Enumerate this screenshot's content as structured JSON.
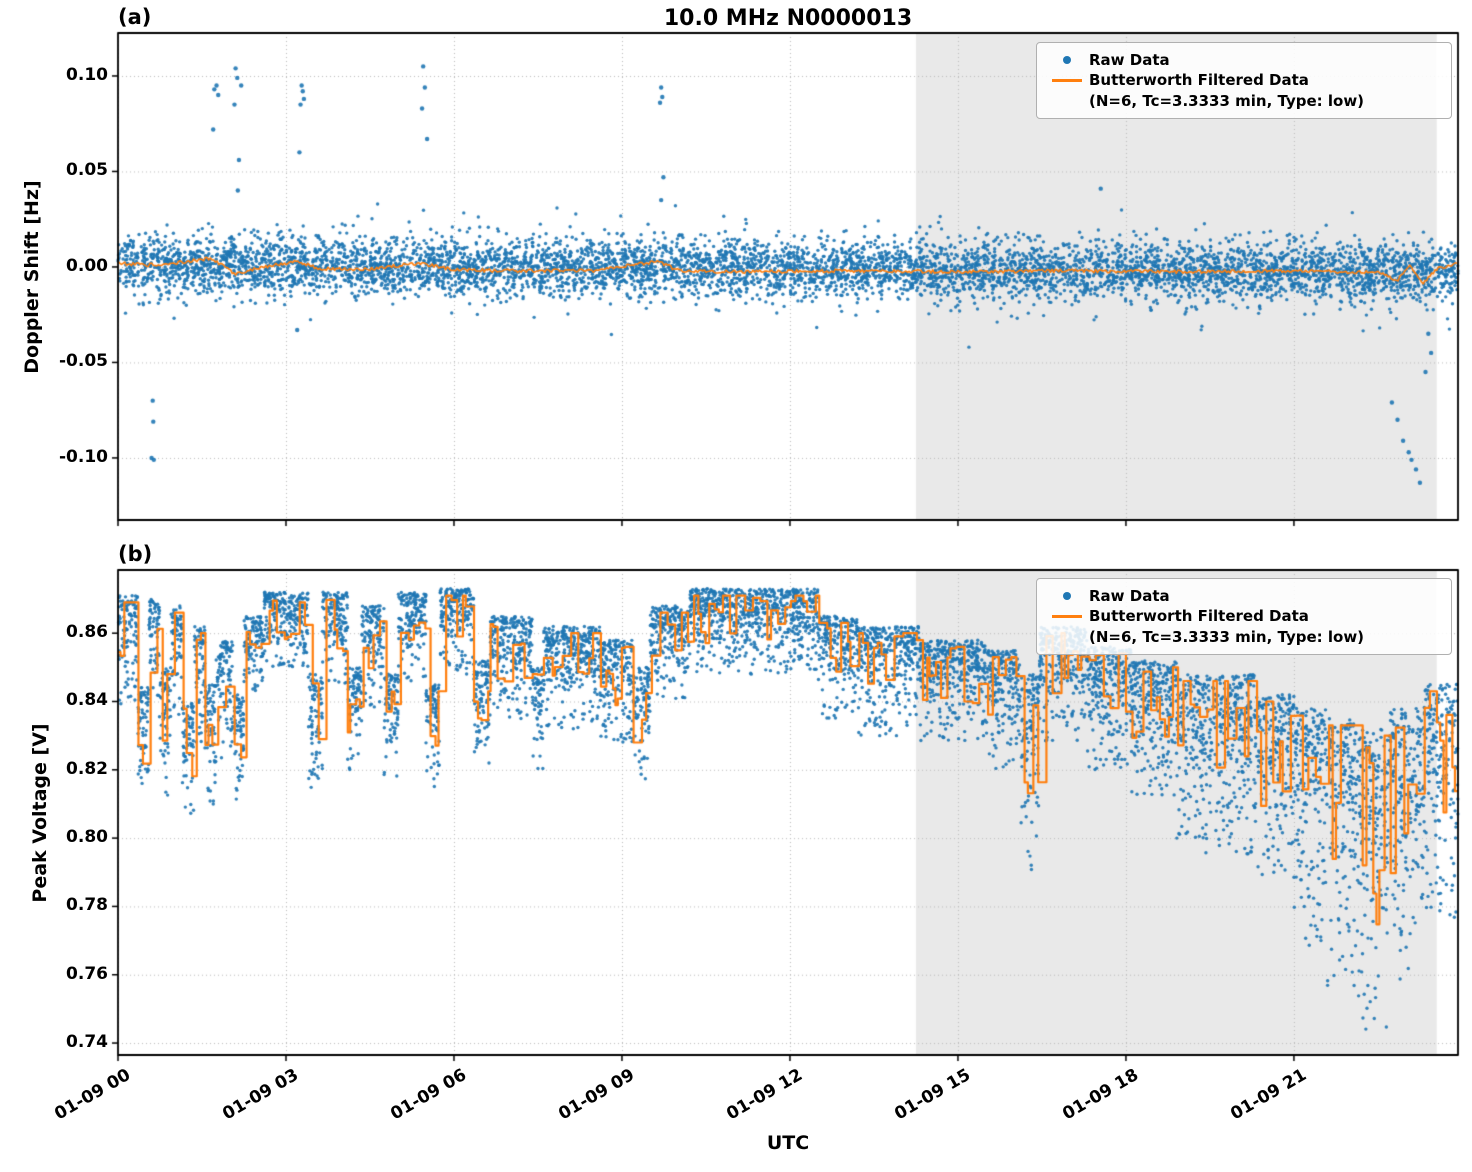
{
  "figure": {
    "title": "10.0 MHz N0000013",
    "xlabel": "UTC",
    "colors": {
      "raw": "#1f77b4",
      "filtered": "#ff7f0e",
      "shade": "#e9e9e9",
      "grid": "#bbbbbb",
      "axis": "#000000"
    },
    "legend": {
      "raw_label": "Raw Data",
      "filtered_label": "Butterworth Filtered Data",
      "filtered_sublabel": "(N=6, Tc=3.3333 min, Type: low)"
    }
  },
  "chart_data": [
    {
      "type": "scatter",
      "panel_label": "(a)",
      "title": "10.0 MHz N0000013",
      "ylabel": "Doppler Shift [Hz]",
      "ylim": [
        -0.1325,
        0.1225
      ],
      "yticks": [
        0.1,
        0.05,
        0.0,
        -0.05,
        -0.1
      ],
      "ytick_labels": [
        "0.10",
        "0.05",
        "0.00",
        "-0.05",
        "-0.10"
      ],
      "xlim_hours": [
        0,
        23.93
      ],
      "xticks_hours": [
        0,
        3,
        6,
        9,
        12,
        15,
        18,
        21
      ],
      "xtick_labels": [],
      "grid": true,
      "legend_position": "upper right",
      "shaded_region_hours": [
        14.25,
        23.55
      ],
      "series": [
        {
          "name": "Raw Data",
          "kind": "scatter-band",
          "n_points": 6500,
          "mean_start": 0.001,
          "mean_end": -0.003,
          "sigma": 0.0075,
          "wide_sigma": 0.013,
          "wide_fraction": 0.07,
          "clip": [
            -0.042,
            0.033
          ],
          "outliers": [
            [
              0.6,
              -0.1
            ],
            [
              0.62,
              -0.07
            ],
            [
              0.63,
              -0.081
            ],
            [
              0.64,
              -0.101
            ],
            [
              1.7,
              0.072
            ],
            [
              1.72,
              0.093
            ],
            [
              1.76,
              0.095
            ],
            [
              1.79,
              0.09
            ],
            [
              2.08,
              0.085
            ],
            [
              2.1,
              0.104
            ],
            [
              2.13,
              0.099
            ],
            [
              2.14,
              0.04
            ],
            [
              2.16,
              0.056
            ],
            [
              2.2,
              0.095
            ],
            [
              3.2,
              -0.033
            ],
            [
              3.24,
              0.06
            ],
            [
              3.26,
              0.085
            ],
            [
              3.28,
              0.095
            ],
            [
              3.3,
              0.092
            ],
            [
              3.32,
              0.088
            ],
            [
              5.43,
              0.083
            ],
            [
              5.45,
              0.105
            ],
            [
              5.48,
              0.094
            ],
            [
              5.52,
              0.067
            ],
            [
              9.68,
              0.086
            ],
            [
              9.7,
              0.094
            ],
            [
              9.72,
              0.089
            ],
            [
              9.74,
              0.047
            ],
            [
              9.7,
              0.035
            ],
            [
              17.55,
              0.041
            ],
            [
              22.75,
              -0.071
            ],
            [
              22.85,
              -0.08
            ],
            [
              22.95,
              -0.091
            ],
            [
              23.05,
              -0.097
            ],
            [
              23.1,
              -0.101
            ],
            [
              23.18,
              -0.106
            ],
            [
              23.25,
              -0.113
            ],
            [
              23.35,
              -0.055
            ],
            [
              23.4,
              -0.035
            ],
            [
              23.45,
              -0.045
            ]
          ]
        },
        {
          "name": "Butterworth Filtered Data",
          "kind": "line-control",
          "jitter": 0.0009,
          "points": [
            [
              0,
              0.002
            ],
            [
              0.5,
              0.001
            ],
            [
              1.0,
              0.002
            ],
            [
              1.65,
              0.0045
            ],
            [
              1.9,
              0.0
            ],
            [
              2.1,
              -0.004
            ],
            [
              2.6,
              0.0
            ],
            [
              3.2,
              0.003
            ],
            [
              3.6,
              -0.001
            ],
            [
              4.5,
              -0.001
            ],
            [
              5.4,
              0.002
            ],
            [
              6.0,
              -0.0015
            ],
            [
              7.0,
              -0.002
            ],
            [
              8.5,
              -0.002
            ],
            [
              9.65,
              0.003
            ],
            [
              10.0,
              -0.002
            ],
            [
              11,
              -0.0025
            ],
            [
              13,
              -0.002
            ],
            [
              15,
              -0.0025
            ],
            [
              17,
              -0.002
            ],
            [
              19,
              -0.0025
            ],
            [
              21,
              -0.002
            ],
            [
              22.5,
              -0.003
            ],
            [
              22.85,
              -0.007
            ],
            [
              23.05,
              0.001
            ],
            [
              23.3,
              -0.009
            ],
            [
              23.55,
              -0.001
            ],
            [
              23.93,
              0.002
            ]
          ]
        }
      ]
    },
    {
      "type": "scatter",
      "panel_label": "(b)",
      "ylabel": "Peak Voltage [V]",
      "xlabel": "UTC",
      "ylim": [
        0.7365,
        0.8785
      ],
      "yticks": [
        0.86,
        0.84,
        0.82,
        0.8,
        0.78,
        0.76,
        0.74
      ],
      "ytick_labels": [
        "0.86",
        "0.84",
        "0.82",
        "0.80",
        "0.78",
        "0.76",
        "0.74"
      ],
      "xlim_hours": [
        0,
        23.93
      ],
      "xticks_hours": [
        0,
        3,
        6,
        9,
        12,
        15,
        18,
        21
      ],
      "xtick_labels": [
        "01-09 00",
        "01-09 03",
        "01-09 06",
        "01-09 09",
        "01-09 12",
        "01-09 15",
        "01-09 18",
        "01-09 21"
      ],
      "grid": true,
      "legend_position": "upper right",
      "shaded_region_hours": [
        14.25,
        23.55
      ],
      "series": [
        {
          "name": "Raw Data",
          "kind": "scatter-segments",
          "density_per_hour": 330,
          "segments": [
            [
              0.0,
              0.35,
              0.832,
              0.871
            ],
            [
              0.35,
              0.55,
              0.808,
              0.845
            ],
            [
              0.55,
              0.75,
              0.835,
              0.87
            ],
            [
              0.75,
              0.95,
              0.81,
              0.85
            ],
            [
              0.95,
              1.15,
              0.835,
              0.868
            ],
            [
              1.15,
              1.35,
              0.806,
              0.84
            ],
            [
              1.35,
              1.55,
              0.828,
              0.862
            ],
            [
              1.55,
              1.75,
              0.81,
              0.845
            ],
            [
              1.75,
              2.05,
              0.822,
              0.858
            ],
            [
              2.05,
              2.25,
              0.808,
              0.842
            ],
            [
              2.25,
              2.6,
              0.842,
              0.865
            ],
            [
              2.6,
              3.4,
              0.85,
              0.872
            ],
            [
              3.4,
              3.65,
              0.812,
              0.848
            ],
            [
              3.65,
              4.1,
              0.845,
              0.872
            ],
            [
              4.1,
              4.35,
              0.82,
              0.85
            ],
            [
              4.35,
              4.75,
              0.838,
              0.868
            ],
            [
              4.75,
              5.0,
              0.818,
              0.848
            ],
            [
              5.0,
              5.5,
              0.845,
              0.872
            ],
            [
              5.5,
              5.75,
              0.815,
              0.845
            ],
            [
              5.75,
              6.35,
              0.848,
              0.873
            ],
            [
              6.35,
              6.65,
              0.822,
              0.852
            ],
            [
              6.65,
              7.4,
              0.835,
              0.865
            ],
            [
              7.4,
              7.6,
              0.82,
              0.85
            ],
            [
              7.6,
              8.6,
              0.832,
              0.862
            ],
            [
              8.6,
              9.2,
              0.828,
              0.858
            ],
            [
              9.2,
              9.5,
              0.815,
              0.85
            ],
            [
              9.5,
              10.2,
              0.84,
              0.868
            ],
            [
              10.2,
              12.5,
              0.848,
              0.873
            ],
            [
              12.5,
              13.2,
              0.835,
              0.865
            ],
            [
              13.2,
              14.3,
              0.83,
              0.862
            ],
            [
              14.3,
              15.5,
              0.828,
              0.858
            ],
            [
              15.5,
              16.1,
              0.82,
              0.855
            ],
            [
              16.1,
              16.45,
              0.788,
              0.848
            ],
            [
              16.45,
              17.3,
              0.828,
              0.862
            ],
            [
              17.3,
              18.1,
              0.82,
              0.856
            ],
            [
              18.1,
              18.9,
              0.812,
              0.852
            ],
            [
              18.9,
              19.4,
              0.8,
              0.848
            ],
            [
              19.4,
              20.3,
              0.795,
              0.848
            ],
            [
              20.3,
              21.0,
              0.788,
              0.842
            ],
            [
              21.0,
              21.6,
              0.768,
              0.838
            ],
            [
              21.6,
              22.1,
              0.752,
              0.835
            ],
            [
              22.1,
              22.7,
              0.742,
              0.832
            ],
            [
              22.7,
              23.3,
              0.758,
              0.838
            ],
            [
              23.3,
              23.93,
              0.775,
              0.845
            ]
          ]
        },
        {
          "name": "Butterworth Filtered Data",
          "kind": "line-stepped",
          "level_offset": 0.3,
          "spike_span": 0.7,
          "hold_min": 0.04,
          "hold_max": 0.16
        }
      ]
    }
  ]
}
